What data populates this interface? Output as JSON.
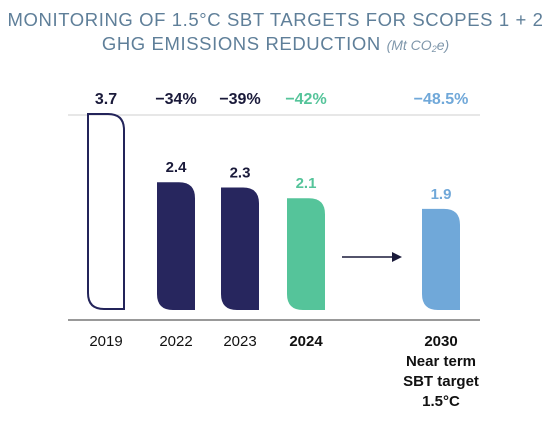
{
  "header": {
    "title_line_1": "MONITORING OF 1.5°C SBT TARGETS FOR SCOPES 1 + 2",
    "title_line_2": "GHG EMISSIONS REDUCTION",
    "unit_prefix": "(Mt CO",
    "unit_sub": "2",
    "unit_suffix": "e)"
  },
  "chart_data": {
    "type": "bar",
    "title": "MONITORING OF 1.5°C SBT TARGETS FOR SCOPES 1 + 2 GHG EMISSIONS REDUCTION",
    "unit": "Mt CO2e",
    "xlabel": "",
    "ylabel": "",
    "ylim": [
      0,
      3.7
    ],
    "grid": false,
    "categories": [
      "2019",
      "2022",
      "2023",
      "2024",
      "2030"
    ],
    "category_labels": [
      [
        "2019"
      ],
      [
        "2022"
      ],
      [
        "2023"
      ],
      [
        "2024"
      ],
      [
        "2030",
        "Near term",
        "SBT target",
        "1.5°C"
      ]
    ],
    "values": [
      3.7,
      2.4,
      2.3,
      2.1,
      1.9
    ],
    "value_labels": [
      "",
      "2.4",
      "2.3",
      "2.1",
      "1.9"
    ],
    "top_labels": [
      "3.7",
      "−34%",
      "−39%",
      "−42%",
      "−48.5%"
    ],
    "colors": {
      "baseline_outline": "#23245a",
      "actual": "#27265e",
      "current": "#55c49a",
      "target": "#70a8d9",
      "dark_text": "#1a1a3a",
      "axis": "#333333",
      "gridline": "#cfcfcf"
    },
    "styles": [
      "outline",
      "filled",
      "filled",
      "filled",
      "filled"
    ],
    "bar_colors": [
      "baseline_outline",
      "actual",
      "actual",
      "current",
      "target"
    ],
    "top_label_colors": [
      "dark_text",
      "dark_text",
      "dark_text",
      "current",
      "target"
    ],
    "bold_x_labels": [
      false,
      false,
      false,
      true,
      true
    ],
    "arrow": {
      "from_category": "2024",
      "to_category": "2030"
    }
  }
}
